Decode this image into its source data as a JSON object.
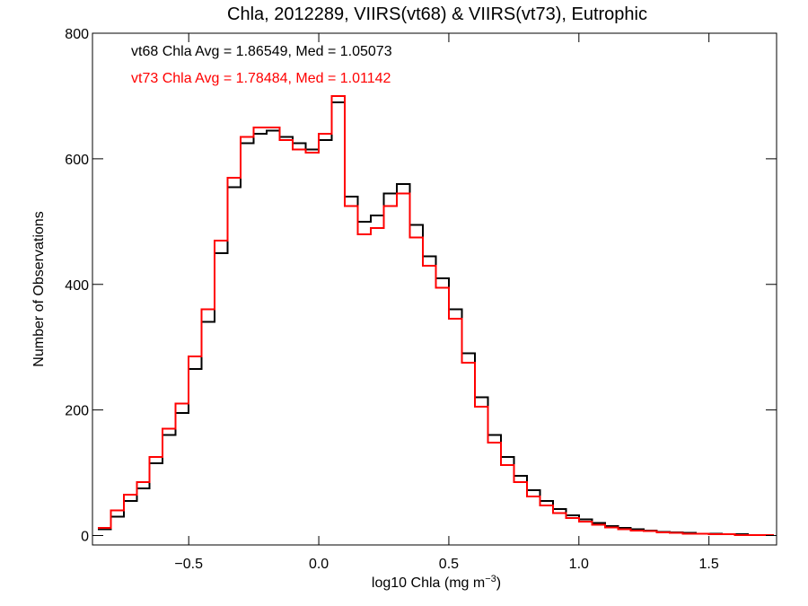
{
  "chart_data": {
    "type": "line",
    "style": "step-histogram",
    "title": "Chla, 2012289, VIIRS(vt68) & VIIRS(vt73), Eutrophic",
    "xlabel_main": "log10 Chla (mg m",
    "xlabel_sup": "−3",
    "xlabel_close": ")",
    "ylabel": "Number of Observations",
    "xlim": [
      -0.87,
      1.76
    ],
    "ylim": [
      -15,
      800
    ],
    "xticks": [
      -0.5,
      0.0,
      0.5,
      1.0,
      1.5
    ],
    "xtick_labels": [
      "−0.5",
      "0.0",
      "0.5",
      "1.0",
      "1.5"
    ],
    "yticks": [
      0,
      200,
      400,
      600,
      800
    ],
    "ytick_labels": [
      "0",
      "200",
      "400",
      "600",
      "800"
    ],
    "grid": false,
    "annotations": [
      {
        "text": "vt68 Chla Avg = 1.86549, Med = 1.05073",
        "color": "#000000"
      },
      {
        "text": "vt73 Chla Avg = 1.78484, Med = 1.01142",
        "color": "#ff0000"
      }
    ],
    "series": [
      {
        "color": "#000000",
        "points": [
          [
            -0.85,
            10
          ],
          [
            -0.8,
            30
          ],
          [
            -0.75,
            55
          ],
          [
            -0.7,
            75
          ],
          [
            -0.65,
            115
          ],
          [
            -0.6,
            160
          ],
          [
            -0.55,
            195
          ],
          [
            -0.5,
            265
          ],
          [
            -0.45,
            340
          ],
          [
            -0.4,
            450
          ],
          [
            -0.35,
            555
          ],
          [
            -0.3,
            625
          ],
          [
            -0.25,
            640
          ],
          [
            -0.2,
            645
          ],
          [
            -0.15,
            635
          ],
          [
            -0.1,
            625
          ],
          [
            -0.05,
            615
          ],
          [
            0.0,
            630
          ],
          [
            0.05,
            690
          ],
          [
            0.1,
            540
          ],
          [
            0.15,
            500
          ],
          [
            0.2,
            510
          ],
          [
            0.25,
            545
          ],
          [
            0.3,
            560
          ],
          [
            0.35,
            495
          ],
          [
            0.4,
            445
          ],
          [
            0.45,
            410
          ],
          [
            0.5,
            360
          ],
          [
            0.55,
            290
          ],
          [
            0.6,
            220
          ],
          [
            0.65,
            160
          ],
          [
            0.7,
            125
          ],
          [
            0.75,
            95
          ],
          [
            0.8,
            72
          ],
          [
            0.85,
            55
          ],
          [
            0.9,
            42
          ],
          [
            0.95,
            32
          ],
          [
            1.0,
            26
          ],
          [
            1.05,
            20
          ],
          [
            1.1,
            15
          ],
          [
            1.15,
            12
          ],
          [
            1.2,
            10
          ],
          [
            1.25,
            8
          ],
          [
            1.3,
            6
          ],
          [
            1.35,
            5
          ],
          [
            1.4,
            4
          ],
          [
            1.45,
            3
          ],
          [
            1.5,
            3
          ],
          [
            1.55,
            2
          ],
          [
            1.6,
            2
          ],
          [
            1.65,
            1
          ],
          [
            1.7,
            1
          ],
          [
            1.75,
            1
          ]
        ]
      },
      {
        "color": "#ff0000",
        "points": [
          [
            -0.85,
            12
          ],
          [
            -0.8,
            40
          ],
          [
            -0.75,
            65
          ],
          [
            -0.7,
            85
          ],
          [
            -0.65,
            125
          ],
          [
            -0.6,
            170
          ],
          [
            -0.55,
            210
          ],
          [
            -0.5,
            285
          ],
          [
            -0.45,
            360
          ],
          [
            -0.4,
            470
          ],
          [
            -0.35,
            570
          ],
          [
            -0.3,
            635
          ],
          [
            -0.25,
            650
          ],
          [
            -0.2,
            650
          ],
          [
            -0.15,
            630
          ],
          [
            -0.1,
            615
          ],
          [
            -0.05,
            610
          ],
          [
            0.0,
            640
          ],
          [
            0.05,
            700
          ],
          [
            0.1,
            525
          ],
          [
            0.15,
            480
          ],
          [
            0.2,
            490
          ],
          [
            0.25,
            525
          ],
          [
            0.3,
            545
          ],
          [
            0.35,
            475
          ],
          [
            0.4,
            430
          ],
          [
            0.45,
            395
          ],
          [
            0.5,
            345
          ],
          [
            0.55,
            275
          ],
          [
            0.6,
            205
          ],
          [
            0.65,
            148
          ],
          [
            0.7,
            112
          ],
          [
            0.75,
            85
          ],
          [
            0.8,
            62
          ],
          [
            0.85,
            48
          ],
          [
            0.9,
            36
          ],
          [
            0.95,
            28
          ],
          [
            1.0,
            22
          ],
          [
            1.05,
            17
          ],
          [
            1.1,
            13
          ],
          [
            1.15,
            10
          ],
          [
            1.2,
            8
          ],
          [
            1.25,
            7
          ],
          [
            1.3,
            5
          ],
          [
            1.35,
            4
          ],
          [
            1.4,
            3
          ],
          [
            1.45,
            3
          ],
          [
            1.5,
            2
          ],
          [
            1.55,
            2
          ],
          [
            1.6,
            1
          ],
          [
            1.65,
            1
          ],
          [
            1.7,
            1
          ],
          [
            1.75,
            1
          ]
        ]
      }
    ]
  }
}
